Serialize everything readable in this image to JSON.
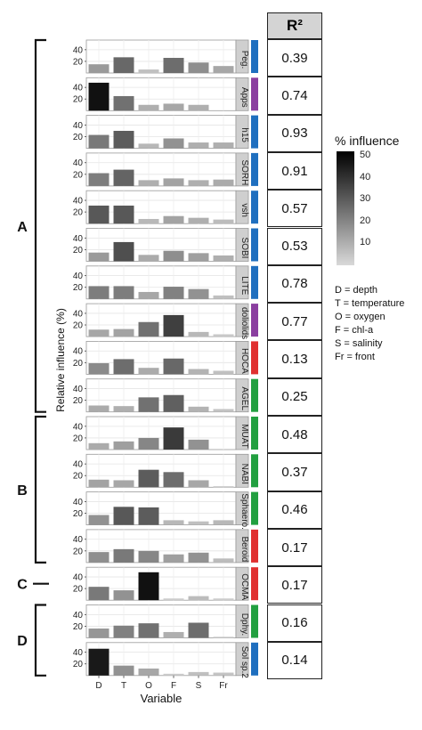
{
  "chart_data": {
    "type": "bar",
    "xlabel": "Variable",
    "ylabel": "Relative influence (%)",
    "categories": [
      "D",
      "T",
      "O",
      "F",
      "S",
      "Fr"
    ],
    "yticks": [
      20,
      40
    ],
    "ylim": [
      0,
      52
    ],
    "panels": [
      {
        "name": "Peg.",
        "group_color": "#1f6fbf",
        "values": [
          15,
          27,
          6,
          26,
          18,
          12
        ],
        "r2": "0.39"
      },
      {
        "name": "Apps",
        "group_color": "#8b3fa0",
        "values": [
          48,
          25,
          10,
          12,
          10,
          0
        ],
        "r2": "0.74"
      },
      {
        "name": "h15",
        "group_color": "#1f6fbf",
        "values": [
          23,
          30,
          8,
          17,
          10,
          10
        ],
        "r2": "0.93"
      },
      {
        "name": "SORH",
        "group_color": "#1f6fbf",
        "values": [
          22,
          28,
          10,
          13,
          10,
          11
        ],
        "r2": "0.91"
      },
      {
        "name": "vsh",
        "group_color": "#1f6fbf",
        "values": [
          31,
          31,
          8,
          13,
          10,
          7
        ],
        "r2": "0.57"
      },
      {
        "name": "SOBI",
        "group_color": "#1f6fbf",
        "values": [
          15,
          33,
          11,
          18,
          14,
          10
        ],
        "r2": "0.53"
      },
      {
        "name": "LITE",
        "group_color": "#1f6fbf",
        "values": [
          22,
          22,
          12,
          21,
          17,
          6
        ],
        "r2": "0.78"
      },
      {
        "name": "doliolids",
        "group_color": "#8b3fa0",
        "values": [
          12,
          13,
          25,
          37,
          8,
          4
        ],
        "r2": "0.77"
      },
      {
        "name": "HOCA",
        "group_color": "#e03030",
        "values": [
          19,
          26,
          11,
          27,
          9,
          6
        ],
        "r2": "0.13"
      },
      {
        "name": "AGEL",
        "group_color": "#22a040",
        "values": [
          11,
          10,
          25,
          29,
          9,
          5
        ],
        "r2": "0.25"
      },
      {
        "name": "MUAT",
        "group_color": "#22a040",
        "values": [
          11,
          14,
          20,
          38,
          17,
          0
        ],
        "r2": "0.48"
      },
      {
        "name": "NABI",
        "group_color": "#22a040",
        "values": [
          13,
          12,
          30,
          26,
          12,
          2
        ],
        "r2": "0.37"
      },
      {
        "name": "Sphaero.",
        "group_color": "#22a040",
        "values": [
          17,
          31,
          30,
          8,
          6,
          8
        ],
        "r2": "0.46"
      },
      {
        "name": "Beroid",
        "group_color": "#e03030",
        "values": [
          18,
          23,
          20,
          14,
          17,
          7
        ],
        "r2": "0.17"
      },
      {
        "name": "OCMA",
        "group_color": "#e03030",
        "values": [
          23,
          17,
          48,
          3,
          7,
          3
        ],
        "r2": "0.17"
      },
      {
        "name": "Dphy.",
        "group_color": "#22a040",
        "values": [
          16,
          21,
          25,
          10,
          26,
          2
        ],
        "r2": "0.16"
      },
      {
        "name": "Sol sp.2",
        "group_color": "#1f6fbf",
        "values": [
          46,
          17,
          12,
          3,
          6,
          5
        ],
        "r2": "0.14"
      }
    ],
    "groups": [
      {
        "label": "A",
        "from": 0,
        "to": 9
      },
      {
        "label": "B",
        "from": 10,
        "to": 13
      },
      {
        "label": "C",
        "from": 14,
        "to": 14
      },
      {
        "label": "D",
        "from": 15,
        "to": 16
      }
    ],
    "r2_header": "R²",
    "legend": {
      "title": "% influence",
      "ticks": [
        10,
        20,
        30,
        40,
        50
      ],
      "min": 0,
      "max": 52,
      "position": "right"
    },
    "key": [
      "D = depth",
      "T = temperature",
      "O = oxygen",
      "F = chl-a",
      "S = salinity",
      "Fr = front"
    ],
    "grid": true
  }
}
